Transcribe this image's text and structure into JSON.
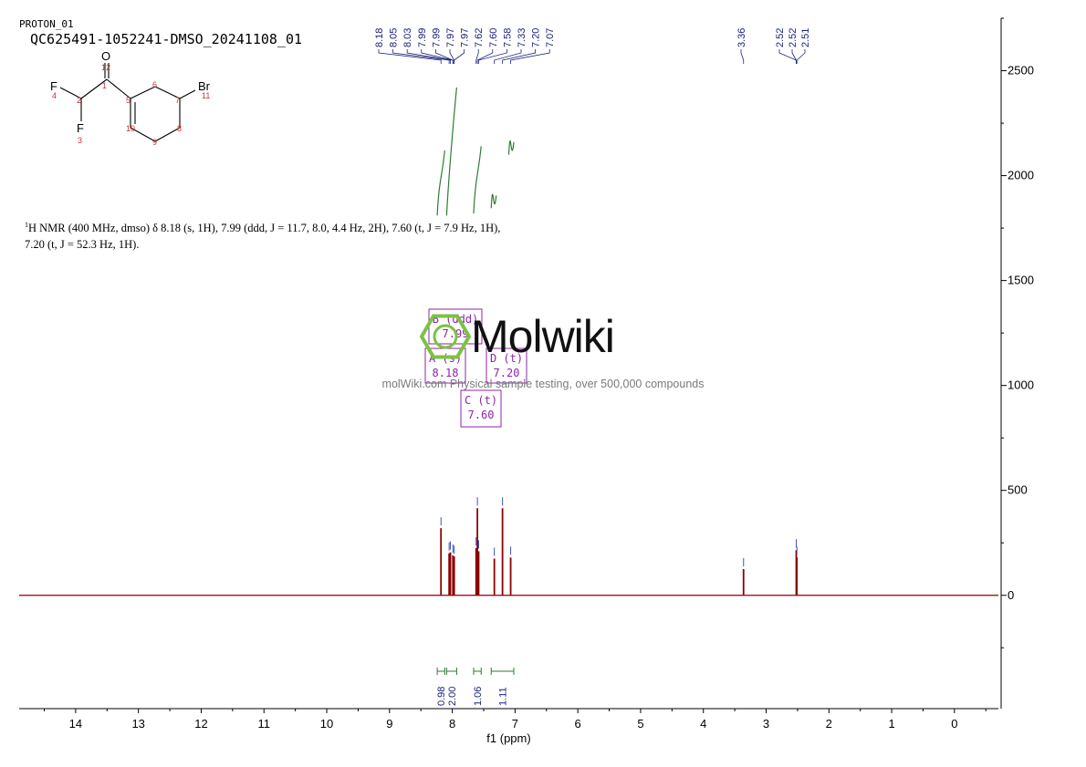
{
  "header": {
    "experiment": "PROTON_01",
    "sample": "QC625491-1052241-DMSO_20241108_01"
  },
  "structure": {
    "atoms": [
      {
        "symbol": "O",
        "number": "12"
      },
      {
        "symbol": "F",
        "number": "4"
      },
      {
        "symbol": "F",
        "number": "3"
      },
      {
        "symbol": "Br",
        "number": "11"
      }
    ],
    "ring_numbers": [
      "1",
      "2",
      "5",
      "6",
      "7",
      "8",
      "9",
      "10"
    ]
  },
  "summary": {
    "sup": "1",
    "line1": "H NMR (400 MHz, dmso) δ 8.18 (s, 1H), 7.99 (ddd, J = 11.7, 8.0, 4.4 Hz, 2H), 7.60 (t, J = 7.9 Hz, 1H),",
    "line2": "7.20 (t, J = 52.3 Hz, 1H)."
  },
  "watermark": {
    "logo": "Molwiki",
    "url": "molWiki.com Physical sample testing, over 500,000 compounds"
  },
  "colors": {
    "spectrum": "#8b0000",
    "peak_labels": "#1a237e",
    "integrals": "#2e7d32",
    "multiplets": "#8e24aa",
    "axis": "#000000",
    "logo_hexagon": "#7cc242"
  },
  "chart_data": {
    "type": "line",
    "title": "",
    "xlabel": "f1 (ppm)",
    "ylabel": "",
    "x_reversed": true,
    "xlim": [
      14.9,
      -0.7
    ],
    "ylim": [
      -540,
      2750
    ],
    "x_ticks": [
      "14",
      "13",
      "12",
      "11",
      "10",
      "9",
      "8",
      "7",
      "6",
      "5",
      "4",
      "3",
      "2",
      "1",
      "0"
    ],
    "y_ticks": [
      "0",
      "500",
      "1000",
      "1500",
      "2000",
      "2500"
    ],
    "peak_labels": [
      "8.18",
      "8.05",
      "8.03",
      "7.99",
      "7.99",
      "7.97",
      "7.97",
      "7.62",
      "7.60",
      "7.58",
      "7.33",
      "7.20",
      "7.07",
      "3.36",
      "2.52",
      "2.52",
      "2.51"
    ],
    "peaks": [
      {
        "ppm": 8.18,
        "height": 320
      },
      {
        "ppm": 8.05,
        "height": 200
      },
      {
        "ppm": 8.03,
        "height": 205
      },
      {
        "ppm": 7.99,
        "height": 190
      },
      {
        "ppm": 7.97,
        "height": 185
      },
      {
        "ppm": 7.62,
        "height": 225
      },
      {
        "ppm": 7.6,
        "height": 415
      },
      {
        "ppm": 7.58,
        "height": 210
      },
      {
        "ppm": 7.33,
        "height": 175
      },
      {
        "ppm": 7.2,
        "height": 415
      },
      {
        "ppm": 7.07,
        "height": 180
      },
      {
        "ppm": 3.36,
        "height": 125
      },
      {
        "ppm": 2.52,
        "height": 215
      },
      {
        "ppm": 2.51,
        "height": 180
      }
    ],
    "integrals": [
      {
        "value": "0.98",
        "from": 8.24,
        "to": 8.12
      },
      {
        "value": "2.00",
        "from": 8.09,
        "to": 7.93
      },
      {
        "value": "1.06",
        "from": 7.66,
        "to": 7.54
      },
      {
        "value": "1.11",
        "from": 7.38,
        "to": 7.02
      }
    ],
    "multiplets": [
      {
        "label": "A (s)",
        "shift": "8.18"
      },
      {
        "label": "B (ddd)",
        "shift": "7.99"
      },
      {
        "label": "C (t)",
        "shift": "7.60"
      },
      {
        "label": "D (t)",
        "shift": "7.20"
      }
    ]
  }
}
